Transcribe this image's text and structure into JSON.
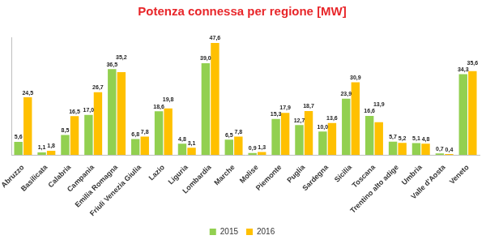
{
  "chart_data": {
    "type": "bar",
    "title": "Potenza connessa per regione [MW]",
    "categories": [
      "Abruzzo",
      "Basilicata",
      "Calabria",
      "Campania",
      "Emilia Romagna",
      "Friuli Venezia Giulia",
      "Lazio",
      "Liguria",
      "Lombardia",
      "Marche",
      "Molise",
      "Piemonte",
      "Puglia",
      "Sardegna",
      "Sicilia",
      "Toscana",
      "Trentino alto adige",
      "Umbria",
      "Valle d'Aosta",
      "Veneto"
    ],
    "series": [
      {
        "name": "2015",
        "color": "#92d050",
        "values": [
          5.6,
          1.1,
          8.5,
          17.0,
          36.5,
          6.8,
          18.6,
          4.8,
          39.0,
          6.5,
          0.9,
          15.3,
          12.7,
          10.0,
          23.9,
          16.6,
          5.7,
          5.1,
          0.7,
          34.3
        ],
        "value_labels": [
          "5,6",
          "1,1",
          "8,5",
          "17,0",
          "36,5",
          "6,8",
          "18,6",
          "4,8",
          "39,0",
          "6,5",
          "0,9",
          "15,3",
          "12,7",
          "10,0",
          "23,9",
          "16,6",
          "5,7",
          "5,1",
          "0,7",
          "34,3"
        ]
      },
      {
        "name": "2016",
        "color": "#ffc000",
        "values": [
          24.5,
          1.8,
          16.5,
          26.7,
          35.2,
          7.8,
          19.8,
          3.1,
          47.6,
          7.8,
          1.3,
          17.9,
          18.7,
          13.6,
          30.9,
          13.9,
          5.2,
          4.8,
          0.4,
          35.6
        ],
        "value_labels": [
          "24,5",
          "1,8",
          "16,5",
          "26,7",
          "35,2",
          "7,8",
          "19,8",
          "3,1",
          "47,6",
          "7,8",
          "1,3",
          "17,9",
          "18,7",
          "13,6",
          "30,9",
          "13,9",
          "5,2",
          "4,8",
          "0,4",
          "35,6"
        ]
      }
    ],
    "ylim": [
      0,
      50
    ],
    "grid": false,
    "legend": "bottom",
    "data_labels": true,
    "tick_labels": "x"
  }
}
